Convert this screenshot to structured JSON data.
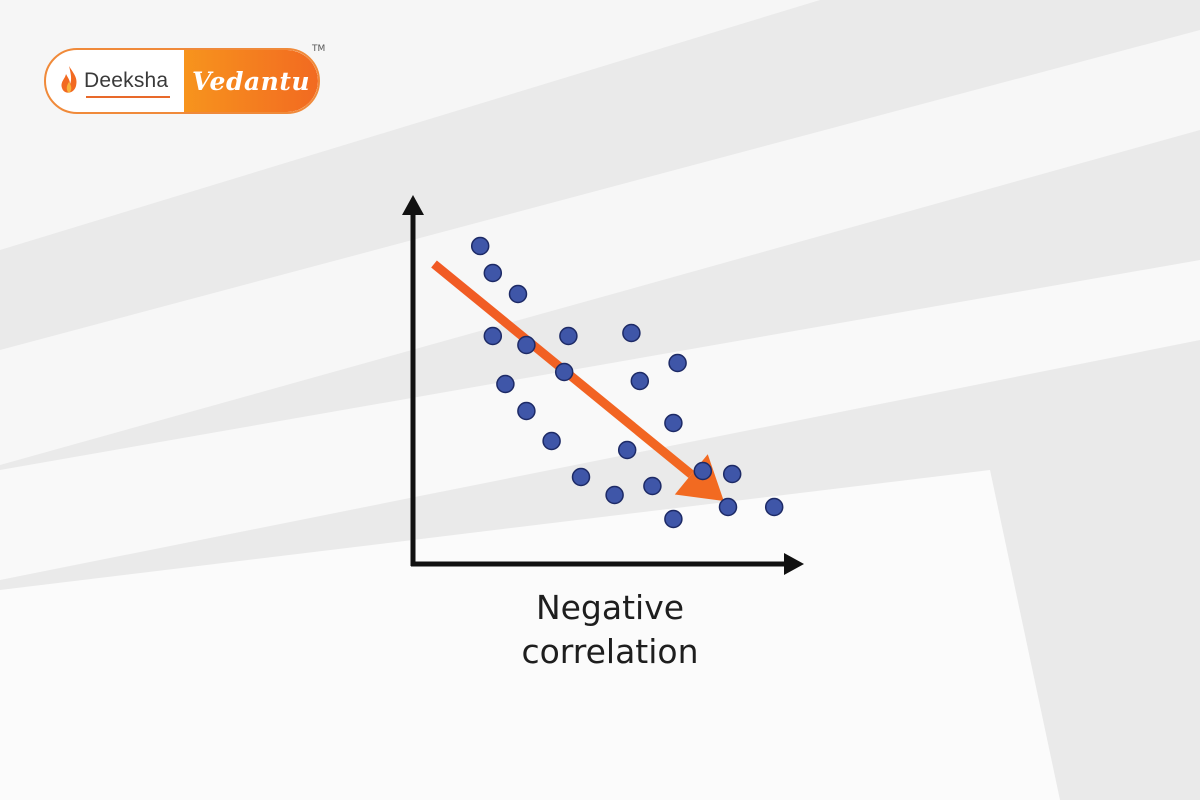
{
  "brand": {
    "left_name": "Deeksha",
    "right_name": "Vedantu",
    "trademark": "TM",
    "accent": "#f26a21",
    "border": "#f08a3a"
  },
  "caption": {
    "line1": "Negative",
    "line2": "correlation"
  },
  "chart_data": {
    "type": "scatter",
    "title": "",
    "xlabel": "",
    "ylabel": "",
    "grid": false,
    "axis_ticks": false,
    "point_color": "#3f56a8",
    "trend_color": "#f26a21",
    "points": [
      {
        "x": 1.6,
        "y": 10.6
      },
      {
        "x": 1.9,
        "y": 9.7
      },
      {
        "x": 2.5,
        "y": 9.0
      },
      {
        "x": 1.9,
        "y": 7.6
      },
      {
        "x": 2.7,
        "y": 7.3
      },
      {
        "x": 3.7,
        "y": 7.6
      },
      {
        "x": 5.2,
        "y": 7.7
      },
      {
        "x": 2.2,
        "y": 6.0
      },
      {
        "x": 3.6,
        "y": 6.4
      },
      {
        "x": 5.4,
        "y": 6.1
      },
      {
        "x": 6.3,
        "y": 6.7
      },
      {
        "x": 2.7,
        "y": 5.1
      },
      {
        "x": 3.3,
        "y": 4.1
      },
      {
        "x": 6.2,
        "y": 4.7
      },
      {
        "x": 5.1,
        "y": 3.8
      },
      {
        "x": 4.0,
        "y": 2.9
      },
      {
        "x": 6.9,
        "y": 3.1
      },
      {
        "x": 7.6,
        "y": 3.0
      },
      {
        "x": 4.8,
        "y": 2.3
      },
      {
        "x": 5.7,
        "y": 2.6
      },
      {
        "x": 7.5,
        "y": 1.9
      },
      {
        "x": 8.6,
        "y": 1.9
      },
      {
        "x": 6.2,
        "y": 1.5
      }
    ],
    "trend": {
      "from": {
        "x": 0.5,
        "y": 10.0
      },
      "to": {
        "x": 7.4,
        "y": 2.1
      }
    },
    "xlim": [
      0,
      9
    ],
    "ylim": [
      0,
      12
    ]
  }
}
